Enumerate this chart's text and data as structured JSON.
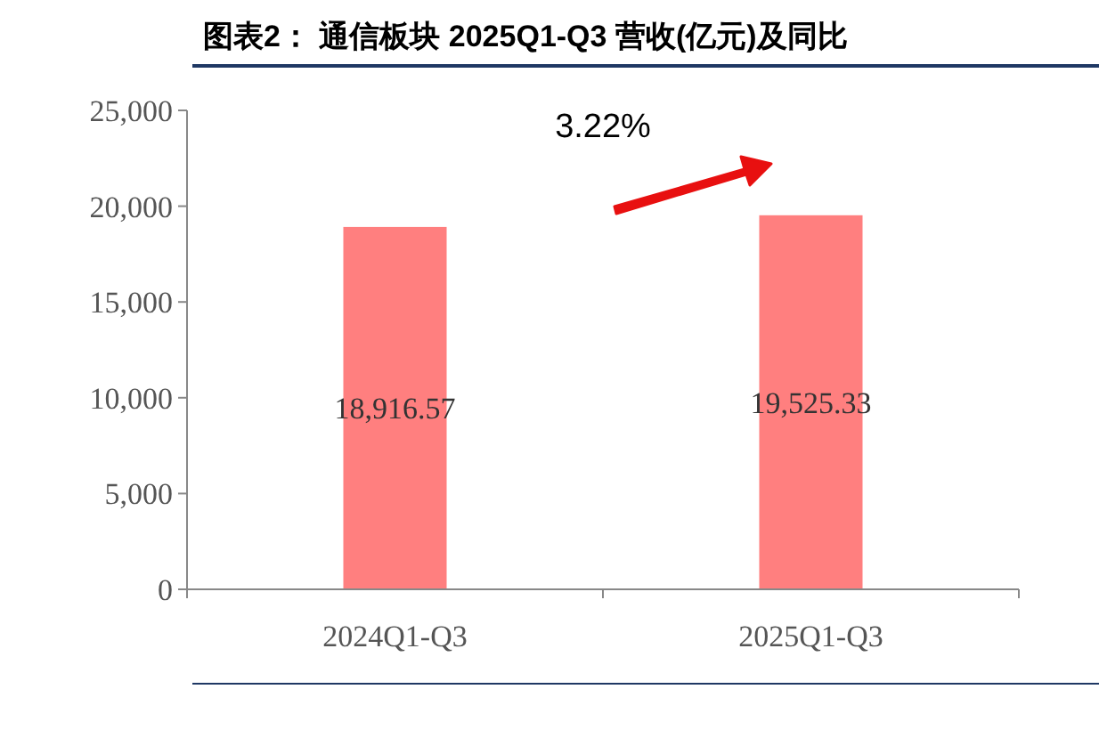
{
  "chart_data": {
    "type": "bar",
    "title": "图表2：  通信板块 2025Q1-Q3 营收(亿元)及同比",
    "categories": [
      "2024Q1-Q3",
      "2025Q1-Q3"
    ],
    "values": [
      18916.57,
      19525.33
    ],
    "color": "#ff7f7f",
    "value_labels": [
      "18,916.57",
      "19,525.33"
    ],
    "ylim": [
      0,
      25000
    ],
    "yticks": [
      {
        "value": 0,
        "label": "0"
      },
      {
        "value": 5000,
        "label": "5,000"
      },
      {
        "value": 10000,
        "label": "10,000"
      },
      {
        "value": 15000,
        "label": "15,000"
      },
      {
        "value": 20000,
        "label": "20,000"
      },
      {
        "value": 25000,
        "label": "25,000"
      }
    ],
    "grid": false,
    "annotations": [
      "3.22%"
    ]
  }
}
